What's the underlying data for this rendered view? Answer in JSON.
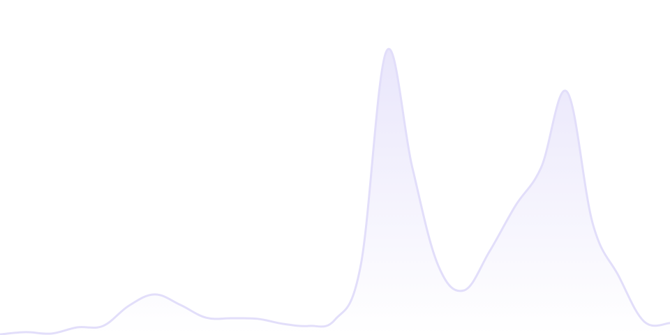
{
  "chart_data": {
    "type": "area",
    "title": "",
    "xlabel": "",
    "ylabel": "",
    "x": [
      0,
      1,
      2,
      3,
      4,
      5,
      6,
      7,
      8,
      9,
      10,
      11,
      12,
      13,
      14,
      15,
      16,
      17,
      18,
      19,
      20,
      21,
      22,
      23,
      24,
      25,
      26
    ],
    "values": [
      0.2,
      1,
      0.5,
      2.7,
      3.2,
      10.3,
      14.3,
      10.6,
      6.1,
      5.9,
      5.7,
      3.9,
      3.2,
      5.4,
      24.6,
      100,
      59,
      24.6,
      15.7,
      29.5,
      45.5,
      59,
      85.7,
      39.3,
      20.9,
      4.7,
      4.2
    ],
    "xlim": [
      0,
      26
    ],
    "ylim": [
      0,
      118
    ],
    "grid": false,
    "axes_visible": false,
    "legend": "none",
    "colors": {
      "line": "#e2defa",
      "fill_top": "#e9e6fb",
      "fill_bottom": "#ffffff"
    }
  }
}
